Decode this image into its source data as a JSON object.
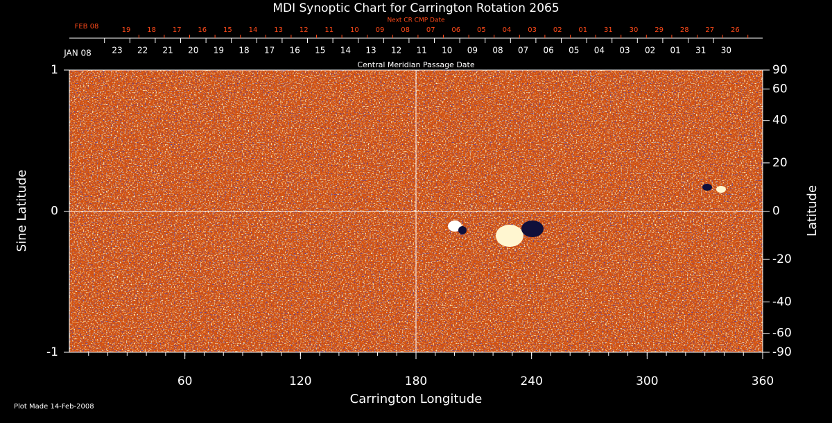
{
  "chart_data": {
    "type": "heatmap",
    "title": "MDI Synoptic Chart for Carrington Rotation 2065",
    "x_label": "Carrington Longitude",
    "y_label": "Sine Latitude",
    "y2_label": "Latitude",
    "xlim": [
      0,
      360
    ],
    "xticks": [
      60,
      120,
      180,
      240,
      300,
      360
    ],
    "ylim": [
      -1,
      1
    ],
    "yticks": [
      -1,
      0,
      1
    ],
    "y2lim": [
      -90,
      90
    ],
    "y2ticks": [
      90,
      60,
      40,
      20,
      0,
      -20,
      -40,
      -60,
      -90
    ],
    "y2scale": "sine",
    "grid_lines": {
      "x": [
        180
      ],
      "y": [
        0
      ]
    },
    "top_axis": {
      "label": "Central Meridian Passage Date",
      "month": "JAN 08",
      "dates": [
        "23",
        "22",
        "21",
        "20",
        "19",
        "18",
        "17",
        "16",
        "15",
        "14",
        "13",
        "12",
        "11",
        "10",
        "09",
        "08",
        "07",
        "06",
        "05",
        "04",
        "03",
        "02",
        "01",
        "31",
        "30"
      ]
    },
    "next_axis": {
      "label": "Next CR CMP Date",
      "month": "FEB 08",
      "color": "#ff4a1a",
      "dates": [
        "19",
        "18",
        "17",
        "16",
        "15",
        "14",
        "13",
        "12",
        "11",
        "10",
        "09",
        "08",
        "07",
        "06",
        "05",
        "04",
        "03",
        "02",
        "01",
        "31",
        "30",
        "29",
        "28",
        "27",
        "26"
      ]
    },
    "footer": "Plot Made 14-Feb-2008"
  }
}
